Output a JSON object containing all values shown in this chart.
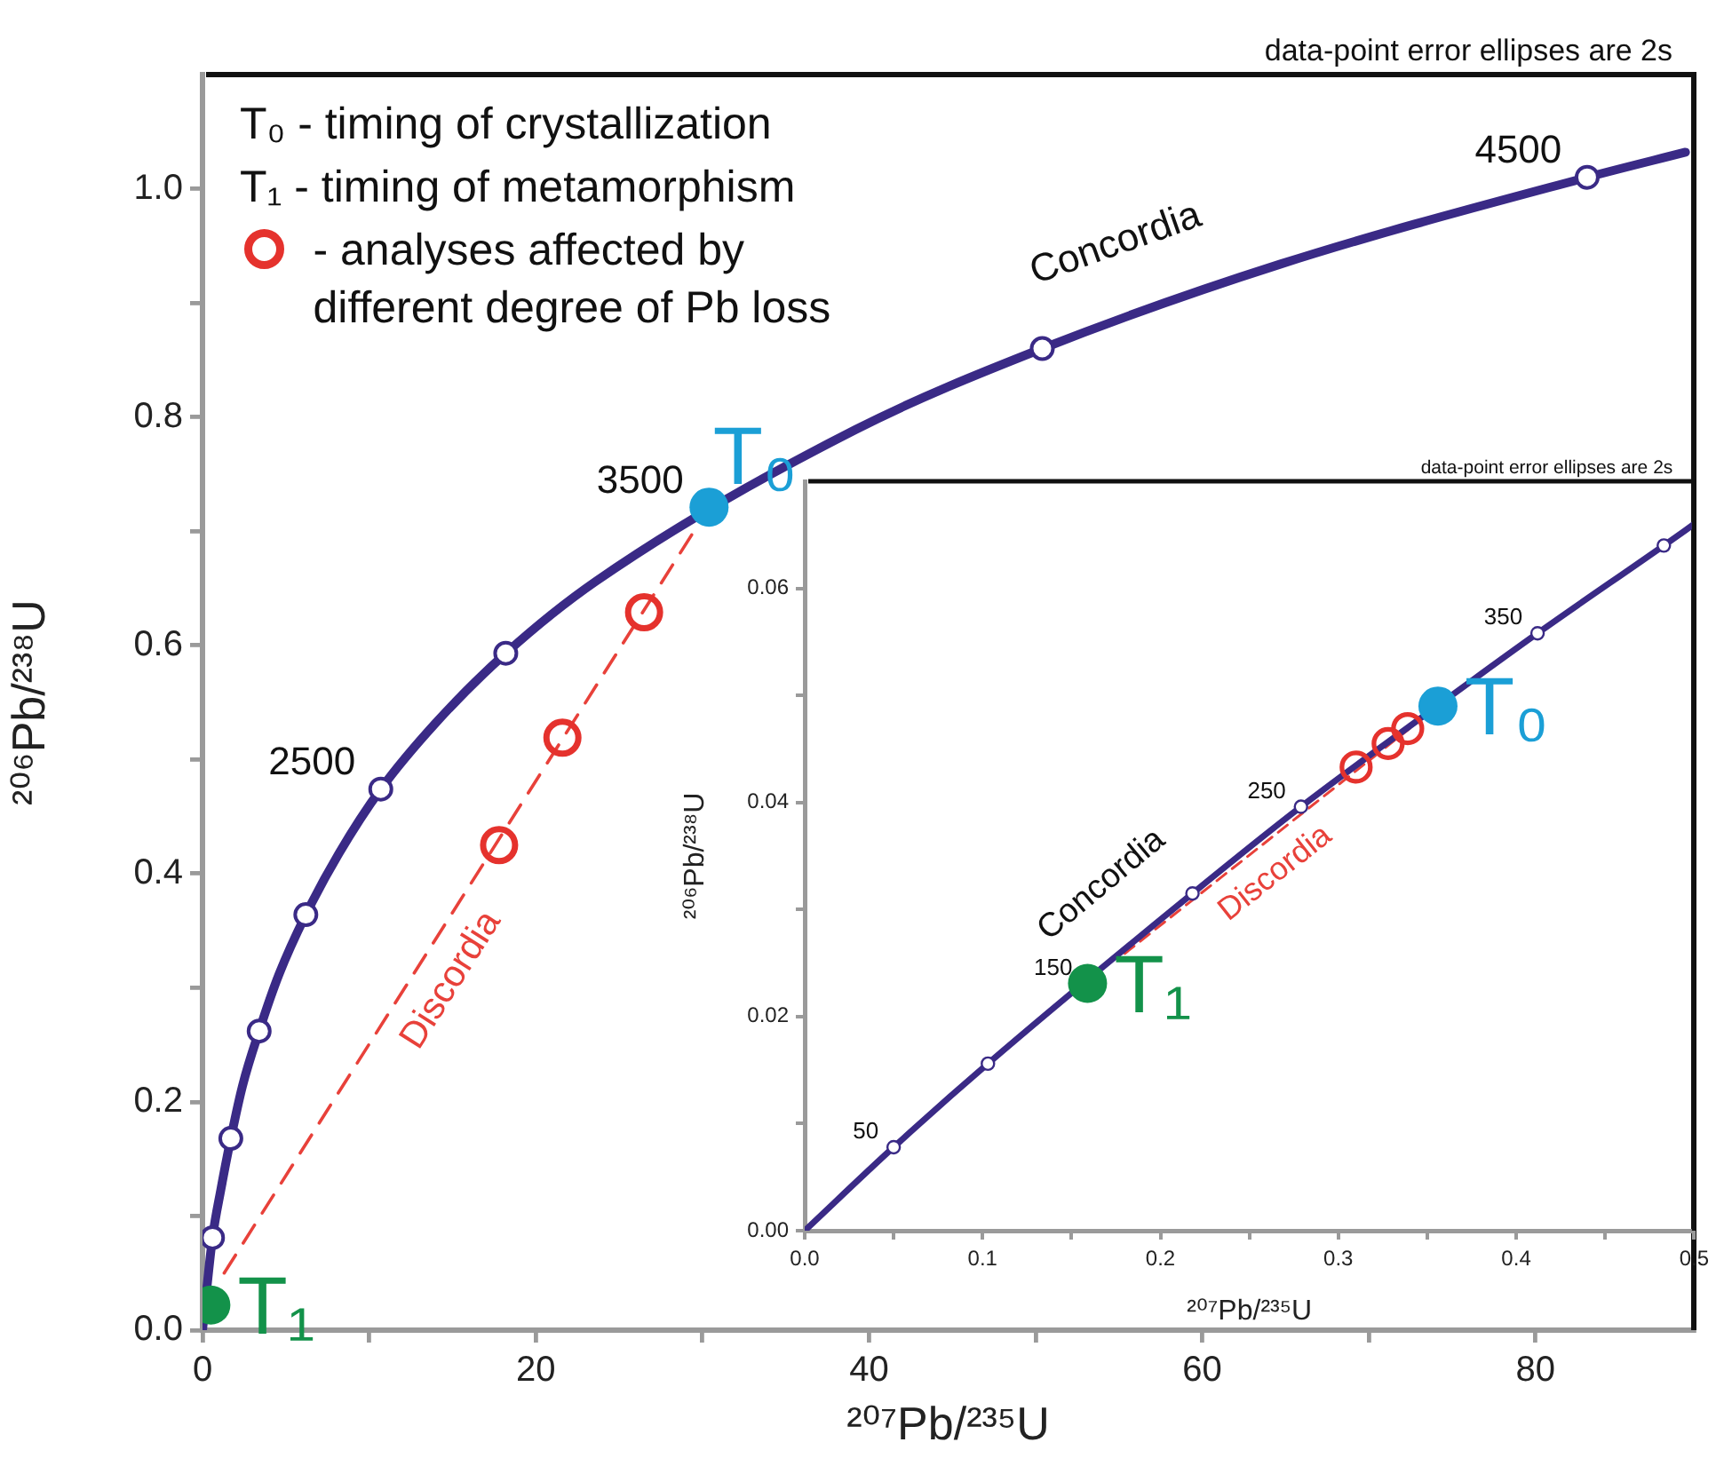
{
  "chart_data": [
    {
      "type": "line",
      "subtitle": "data-point error ellipses are 2s",
      "xlabel": "²⁰⁷Pb/²³⁵U",
      "ylabel": "²⁰⁶Pb/²³⁸U",
      "xlim": [
        0,
        89.5
      ],
      "ylim": [
        0,
        1.1
      ],
      "xticks": [
        0,
        {
          "value": 10,
          "label": null
        },
        20,
        {
          "value": 30,
          "label": null
        },
        40,
        {
          "value": 50,
          "label": null
        },
        60,
        {
          "value": 70,
          "label": null
        },
        80
      ],
      "yticks": [
        {
          "value": 0,
          "label": "0.0"
        },
        {
          "value": 0.1,
          "label": null
        },
        0.2,
        {
          "value": 0.3,
          "label": null
        },
        0.4,
        {
          "value": 0.5,
          "label": null
        },
        0.6,
        {
          "value": 0.7,
          "label": null
        },
        0.8,
        {
          "value": 0.9,
          "label": null
        },
        {
          "value": 1,
          "label": "1.0"
        }
      ],
      "legend": "top left",
      "annotations": [
        "T₀ - timing of crystallization",
        "T₁ - timing of metamorphism",
        {
          "text": "Concordia",
          "x": 56.3,
          "y": 0.89
        },
        {
          "text": "2500",
          "x": 10.7,
          "y": 0.474
        },
        {
          "text": "3500",
          "x": 30.4,
          "y": 0.721
        },
        {
          "text": "4500",
          "x": 83.1,
          "y": 1.01
        }
      ],
      "series": [
        {
          "name": "Discordia",
          "type": "line",
          "line_style": "dashed",
          "marker": "none",
          "color": "#e8413a",
          "x": [
            1.3,
            29.5
          ],
          "values": [
            0.05,
            0.7
          ]
        },
        {
          "color": "#3a2a86",
          "marker": "none",
          "x": [
            0,
            0.6,
            1.1,
            1.7,
            2.4,
            3.4,
            4.6,
            6.2,
            8.2,
            10.7,
            14.0,
            18.2,
            23.6,
            30.4,
            39.2,
            50.4,
            64.7,
            83.1,
            89.0
          ],
          "values": [
            0,
            0.081,
            0.123,
            0.168,
            0.214,
            0.262,
            0.312,
            0.364,
            0.418,
            0.474,
            0.532,
            0.593,
            0.656,
            null,
            0.789,
            0.86,
            0.934,
            1.01,
            1.032
          ]
        },
        {
          "type": "scatter",
          "marker": "circle",
          "color": "#ffffff",
          "x": [
            0.6,
            1.7,
            3.4,
            6.2,
            10.7,
            18.2,
            50.4,
            83.1
          ],
          "values": [
            0.081,
            0.168,
            0.262,
            0.364,
            0.474,
            0.593,
            0.86,
            1.01
          ]
        },
        {
          "name": "- analyses affected by different degree of Pb loss",
          "type": "scatter",
          "marker": "circle",
          "color": "#e5322d",
          "x": [
            17.8,
            21.6,
            26.5
          ],
          "values": [
            0.425,
            0.519,
            0.629
          ]
        },
        {
          "name": "T₁",
          "type": "scatter",
          "marker": "circle",
          "color": "#13924a",
          "x": [
            0.5
          ],
          "values": [
            0.022
          ]
        },
        {
          "name": "T₀",
          "type": "scatter",
          "marker": "circle",
          "color": "#1b9fd6",
          "x": [
            30.4
          ],
          "values": [
            0.721
          ]
        }
      ]
    },
    {
      "type": "line",
      "subtitle": "data-point error ellipses are 2s",
      "xlabel": "²⁰⁷Pb/²³⁵U",
      "ylabel": "²⁰⁶Pb/²³⁸U",
      "xlim": [
        0,
        0.5
      ],
      "ylim": [
        0,
        0.07
      ],
      "xticks": [
        {
          "value": 0,
          "label": "0.0"
        },
        {
          "value": 0.05,
          "label": null
        },
        0.1,
        {
          "value": 0.15,
          "label": null
        },
        0.2,
        {
          "value": 0.25,
          "label": null
        },
        0.3,
        {
          "value": 0.35,
          "label": null
        },
        0.4,
        {
          "value": 0.45,
          "label": null
        },
        0.5
      ],
      "yticks": [
        {
          "value": 0,
          "label": "0.00"
        },
        {
          "value": 0.01,
          "label": null
        },
        0.02,
        {
          "value": 0.03,
          "label": null
        },
        0.04,
        {
          "value": 0.05,
          "label": null
        },
        0.06
      ],
      "annotations": [
        {
          "text": "Concordia",
          "x": 0.19,
          "y": 0.0277
        },
        {
          "text": "50",
          "x": 0.05,
          "y": 0.0078
        },
        {
          "text": "150",
          "x": 0.159,
          "y": 0.0231
        },
        {
          "text": "250",
          "x": 0.279,
          "y": 0.0396
        },
        {
          "text": "350",
          "x": 0.412,
          "y": 0.0558
        }
      ],
      "series": [
        {
          "name": "Discordia",
          "type": "line",
          "line_style": "dashed",
          "marker": "none",
          "color": "#e8413a",
          "x": [
            0.18,
            0.356
          ],
          "values": [
            0.0259,
            0.049
          ]
        },
        {
          "color": "#3a2a86",
          "marker": "none",
          "x": [
            0,
            0.05,
            0.103,
            0.218,
            0.279,
            0.344,
            0.412,
            0.483,
            0.5
          ],
          "values": [
            0,
            0.0078,
            0.0156,
            0.0315,
            0.0396,
            0.0476,
            0.0558,
            0.064,
            0.066
          ]
        },
        {
          "type": "scatter",
          "marker": "circle",
          "color": "#ffffff",
          "x": [
            0.05,
            0.103,
            0.218,
            0.279,
            0.412,
            0.483
          ],
          "values": [
            0.0078,
            0.0156,
            0.0315,
            0.0396,
            0.0558,
            0.064
          ]
        },
        {
          "type": "scatter",
          "marker": "circle",
          "color": "#e5322d",
          "x": [
            0.31,
            0.328,
            0.339
          ],
          "values": [
            0.0433,
            0.0455,
            0.0469
          ]
        },
        {
          "name": "T₁",
          "type": "scatter",
          "marker": "circle",
          "color": "#13924a",
          "x": [
            0.159
          ],
          "values": [
            0.0231
          ]
        },
        {
          "name": "T₀",
          "type": "scatter",
          "marker": "circle",
          "color": "#1b9fd6",
          "x": [
            0.356
          ],
          "values": [
            0.049
          ]
        }
      ]
    }
  ]
}
